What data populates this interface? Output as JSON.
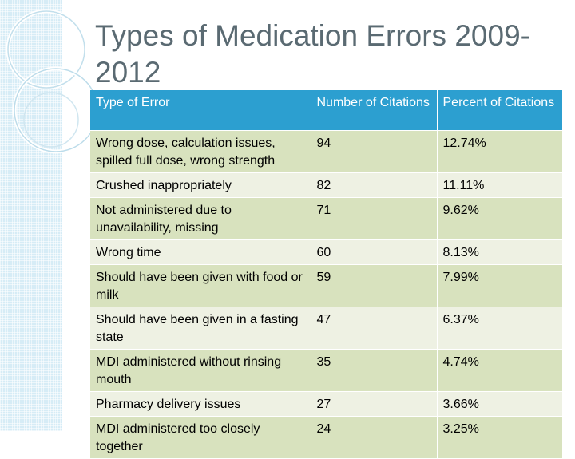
{
  "slide": {
    "title": "Types of Medication Errors 2009-2012"
  },
  "table": {
    "headers": [
      "Type of Error",
      "Number of Citations",
      "Percent of Citations"
    ],
    "rows": [
      [
        "Wrong dose, calculation issues, spilled full dose, wrong strength",
        "94",
        "12.74%"
      ],
      [
        "Crushed inappropriately",
        "82",
        "11.11%"
      ],
      [
        "Not administered due to unavailability, missing",
        "71",
        "9.62%"
      ],
      [
        "Wrong time",
        "60",
        "8.13%"
      ],
      [
        "Should have been given with food or milk",
        "59",
        "7.99%"
      ],
      [
        "Should have been given in a fasting state",
        "47",
        "6.37%"
      ],
      [
        "MDI administered without rinsing mouth",
        "35",
        "4.74%"
      ],
      [
        "Pharmacy delivery issues",
        "27",
        "3.66%"
      ],
      [
        "MDI administered too closely together",
        "24",
        "3.25%"
      ]
    ]
  },
  "colors": {
    "header": "#2c9fd0",
    "row_dark": "#d8e2be",
    "row_light": "#eef1e3",
    "side_pattern": "#d6ecf6"
  }
}
